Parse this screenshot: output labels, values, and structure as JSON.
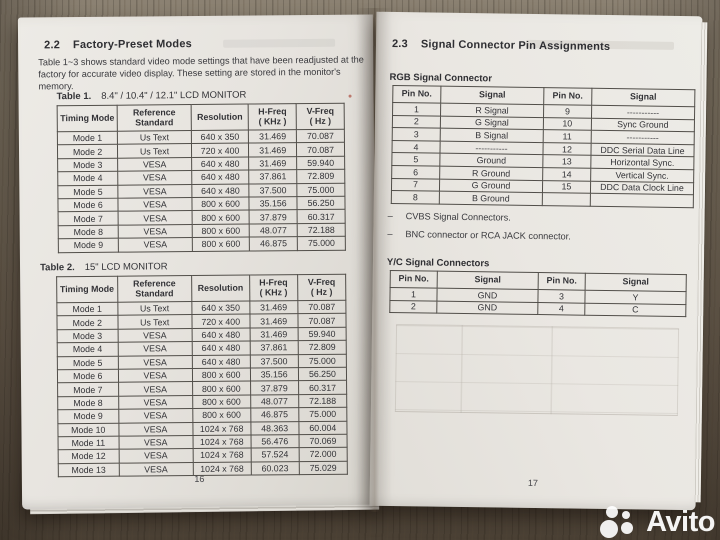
{
  "left_page": {
    "section_number": "2.2",
    "section_title": "Factory-Preset Modes",
    "intro": "Table 1~3 shows standard video mode settings that have been readjusted at the factory for accurate video display. These setting are stored in the monitor's memory.",
    "page_number": "16",
    "table1": {
      "caption_label": "Table 1.",
      "caption_text": "8.4\" / 10.4\" / 12.1\" LCD MONITOR",
      "headers": [
        "Timing Mode",
        "Reference\nStandard",
        "Resolution",
        "H-Freq\n( KHz )",
        "V-Freq\n( Hz )"
      ],
      "rows": [
        [
          "Mode 1",
          "Us Text",
          "640 x 350",
          "31.469",
          "70.087"
        ],
        [
          "Mode 2",
          "Us Text",
          "720 x 400",
          "31.469",
          "70.087"
        ],
        [
          "Mode 3",
          "VESA",
          "640 x 480",
          "31.469",
          "59.940"
        ],
        [
          "Mode 4",
          "VESA",
          "640 x 480",
          "37.861",
          "72.809"
        ],
        [
          "Mode 5",
          "VESA",
          "640 x 480",
          "37.500",
          "75.000"
        ],
        [
          "Mode 6",
          "VESA",
          "800 x 600",
          "35.156",
          "56.250"
        ],
        [
          "Mode 7",
          "VESA",
          "800 x 600",
          "37.879",
          "60.317"
        ],
        [
          "Mode 8",
          "VESA",
          "800 x 600",
          "48.077",
          "72.188"
        ],
        [
          "Mode 9",
          "VESA",
          "800 x 600",
          "46.875",
          "75.000"
        ]
      ]
    },
    "table2": {
      "caption_label": "Table 2.",
      "caption_text": "15\" LCD MONITOR",
      "headers": [
        "Timing Mode",
        "Reference\nStandard",
        "Resolution",
        "H-Freq\n( KHz )",
        "V-Freq\n( Hz )"
      ],
      "rows": [
        [
          "Mode 1",
          "Us Text",
          "640 x 350",
          "31.469",
          "70.087"
        ],
        [
          "Mode 2",
          "Us Text",
          "720 x 400",
          "31.469",
          "70.087"
        ],
        [
          "Mode 3",
          "VESA",
          "640 x 480",
          "31.469",
          "59.940"
        ],
        [
          "Mode 4",
          "VESA",
          "640 x 480",
          "37.861",
          "72.809"
        ],
        [
          "Mode 5",
          "VESA",
          "640 x 480",
          "37.500",
          "75.000"
        ],
        [
          "Mode 6",
          "VESA",
          "800 x 600",
          "35.156",
          "56.250"
        ],
        [
          "Mode 7",
          "VESA",
          "800 x 600",
          "37.879",
          "60.317"
        ],
        [
          "Mode 8",
          "VESA",
          "800 x 600",
          "48.077",
          "72.188"
        ],
        [
          "Mode 9",
          "VESA",
          "800 x 600",
          "46.875",
          "75.000"
        ],
        [
          "Mode 10",
          "VESA",
          "1024 x 768",
          "48.363",
          "60.004"
        ],
        [
          "Mode 11",
          "VESA",
          "1024 x 768",
          "56.476",
          "70.069"
        ],
        [
          "Mode 12",
          "VESA",
          "1024 x 768",
          "57.524",
          "72.000"
        ],
        [
          "Mode 13",
          "VESA",
          "1024 x 768",
          "60.023",
          "75.029"
        ]
      ]
    }
  },
  "right_page": {
    "section_number": "2.3",
    "section_title": "Signal Connector Pin Assignments",
    "rgb_heading": "RGB Signal Connector",
    "rgb_table": {
      "headers": [
        "Pin No.",
        "Signal",
        "Pin No.",
        "Signal"
      ],
      "rows": [
        [
          "1",
          "R Signal",
          "9",
          "-----------"
        ],
        [
          "2",
          "G Signal",
          "10",
          "Sync Ground"
        ],
        [
          "3",
          "B Signal",
          "11",
          "-----------"
        ],
        [
          "4",
          "-----------",
          "12",
          "DDC Serial Data Line"
        ],
        [
          "5",
          "Ground",
          "13",
          "Horizontal Sync."
        ],
        [
          "6",
          "R Ground",
          "14",
          "Vertical Sync."
        ],
        [
          "7",
          "G Ground",
          "15",
          "DDC Data Clock Line"
        ],
        [
          "8",
          "B Ground",
          "",
          ""
        ]
      ]
    },
    "note_bullet": "–",
    "notes": [
      "CVBS Signal Connectors.",
      "BNC connector or RCA JACK connector."
    ],
    "yc_heading": "Y/C Signal Connectors",
    "yc_table": {
      "headers": [
        "Pin No.",
        "Signal",
        "Pin No.",
        "Signal"
      ],
      "rows": [
        [
          "1",
          "GND",
          "3",
          "Y"
        ],
        [
          "2",
          "GND",
          "4",
          "C"
        ]
      ]
    },
    "page_number": "17"
  },
  "watermark": {
    "text": "Avito"
  }
}
